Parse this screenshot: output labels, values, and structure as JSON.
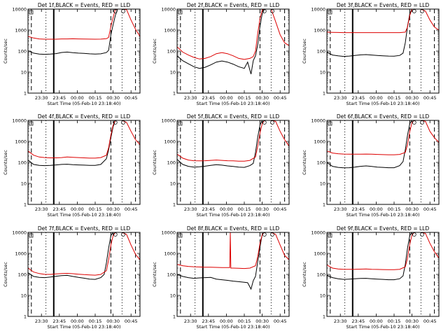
{
  "figure": {
    "ylabel": "Counts/sec",
    "xlabel": "Start Time (05-Feb-10 23:18:40)",
    "x_ticks": [
      "23:30",
      "23:45",
      "00:00",
      "00:15",
      "00:30",
      "00:45"
    ],
    "y_ticks": [
      "1",
      "10",
      "100",
      "1000",
      "10000"
    ],
    "colors": {
      "events": "#000000",
      "lld": "#dd0000",
      "axes": "#000000"
    }
  },
  "chart_data": [
    {
      "type": "line",
      "title": "Det 1f,BLACK = Events, RED = LLD",
      "ylim": [
        1,
        10000
      ],
      "log_y": true,
      "grid": false,
      "series": [
        {
          "name": "Events",
          "color": "#000000",
          "x": [
            0,
            5,
            10,
            15,
            20,
            25,
            30,
            35,
            40,
            45,
            50,
            55,
            60,
            65,
            70,
            72,
            74,
            76,
            78,
            80,
            84,
            88,
            92,
            96,
            100
          ],
          "y": [
            105,
            80,
            72,
            70,
            72,
            76,
            86,
            90,
            84,
            80,
            78,
            74,
            72,
            74,
            85,
            110,
            600,
            1800,
            5000,
            10000,
            10000,
            10000,
            10000,
            10000,
            10000
          ]
        },
        {
          "name": "LLD",
          "color": "#dd0000",
          "x": [
            0,
            5,
            10,
            15,
            20,
            25,
            30,
            35,
            40,
            45,
            50,
            55,
            60,
            65,
            70,
            72,
            74,
            76,
            78,
            80,
            84,
            88,
            92,
            96,
            100
          ],
          "y": [
            500,
            420,
            380,
            370,
            370,
            370,
            380,
            380,
            385,
            380,
            375,
            372,
            370,
            372,
            390,
            450,
            1500,
            4000,
            9500,
            10000,
            10000,
            9500,
            3000,
            1100,
            500
          ]
        }
      ]
    },
    {
      "type": "line",
      "title": "Det 2f,BLACK = Events, RED = LLD",
      "ylim": [
        1,
        10000
      ],
      "log_y": true,
      "grid": false,
      "series": [
        {
          "name": "Events",
          "color": "#000000",
          "x": [
            0,
            5,
            10,
            15,
            20,
            25,
            30,
            35,
            40,
            45,
            50,
            55,
            60,
            63,
            66,
            68,
            70,
            72,
            74,
            76,
            78,
            80,
            84,
            88,
            92,
            96,
            100
          ],
          "y": [
            60,
            35,
            25,
            18,
            15,
            17,
            22,
            30,
            34,
            30,
            24,
            18,
            15,
            30,
            8,
            35,
            60,
            200,
            1500,
            6000,
            10000,
            10000,
            10000,
            10000,
            10000,
            10000,
            10000
          ]
        },
        {
          "name": "LLD",
          "color": "#dd0000",
          "x": [
            0,
            5,
            10,
            15,
            20,
            25,
            30,
            35,
            40,
            45,
            50,
            55,
            60,
            65,
            68,
            70,
            72,
            74,
            76,
            78,
            80,
            84,
            88,
            92,
            96,
            100
          ],
          "y": [
            160,
            90,
            65,
            50,
            42,
            45,
            55,
            75,
            85,
            75,
            60,
            45,
            40,
            45,
            55,
            100,
            700,
            3500,
            9000,
            10000,
            10000,
            10000,
            2500,
            600,
            250,
            180
          ]
        }
      ]
    },
    {
      "type": "line",
      "title": "Det 3f,BLACK = Events, RED = LLD",
      "ylim": [
        1,
        10000
      ],
      "log_y": true,
      "grid": false,
      "series": [
        {
          "name": "Events",
          "color": "#000000",
          "x": [
            0,
            5,
            10,
            15,
            20,
            25,
            30,
            35,
            40,
            45,
            50,
            55,
            60,
            65,
            68,
            70,
            72,
            74,
            76,
            80,
            84,
            88,
            92,
            96,
            100
          ],
          "y": [
            90,
            65,
            60,
            56,
            58,
            62,
            66,
            68,
            65,
            62,
            60,
            58,
            57,
            62,
            80,
            250,
            1500,
            6000,
            10000,
            10000,
            10000,
            10000,
            10000,
            10000,
            10000
          ]
        },
        {
          "name": "LLD",
          "color": "#dd0000",
          "x": [
            0,
            5,
            10,
            15,
            20,
            25,
            30,
            35,
            40,
            45,
            50,
            55,
            60,
            65,
            70,
            72,
            74,
            76,
            78,
            80,
            84,
            88,
            92,
            96,
            100
          ],
          "y": [
            800,
            780,
            770,
            760,
            760,
            760,
            760,
            760,
            760,
            760,
            760,
            760,
            760,
            760,
            800,
            1400,
            5000,
            10000,
            10000,
            10000,
            10000,
            8000,
            3000,
            1400,
            1000
          ]
        }
      ]
    },
    {
      "type": "line",
      "title": "Det 4f,BLACK = Events, RED = LLD",
      "ylim": [
        1,
        10000
      ],
      "log_y": true,
      "grid": false,
      "series": [
        {
          "name": "Events",
          "color": "#000000",
          "x": [
            0,
            5,
            10,
            15,
            20,
            25,
            30,
            35,
            40,
            45,
            50,
            55,
            60,
            65,
            70,
            72,
            74,
            76,
            78,
            80,
            84,
            88,
            92,
            96,
            100
          ],
          "y": [
            130,
            80,
            72,
            70,
            72,
            76,
            80,
            82,
            78,
            76,
            74,
            72,
            72,
            80,
            150,
            400,
            1500,
            5000,
            10000,
            10000,
            10000,
            10000,
            10000,
            10000,
            10000
          ]
        },
        {
          "name": "LLD",
          "color": "#dd0000",
          "x": [
            0,
            5,
            10,
            15,
            20,
            25,
            30,
            35,
            40,
            45,
            50,
            55,
            60,
            65,
            70,
            72,
            74,
            76,
            78,
            80,
            84,
            88,
            92,
            96,
            100
          ],
          "y": [
            350,
            220,
            180,
            170,
            165,
            165,
            170,
            180,
            175,
            170,
            165,
            160,
            160,
            170,
            220,
            500,
            2000,
            6000,
            10000,
            10000,
            10000,
            8000,
            3000,
            1200,
            700
          ]
        }
      ]
    },
    {
      "type": "line",
      "title": "Det 5f,BLACK = Events, RED = LLD",
      "ylim": [
        1,
        10000
      ],
      "log_y": true,
      "grid": false,
      "series": [
        {
          "name": "Events",
          "color": "#000000",
          "x": [
            0,
            5,
            10,
            15,
            20,
            25,
            30,
            35,
            40,
            45,
            50,
            55,
            60,
            65,
            68,
            70,
            72,
            74,
            76,
            80,
            84,
            88,
            92,
            96,
            100
          ],
          "y": [
            140,
            80,
            65,
            60,
            62,
            66,
            72,
            78,
            74,
            68,
            64,
            60,
            58,
            70,
            90,
            300,
            1600,
            6000,
            10000,
            10000,
            10000,
            10000,
            10000,
            10000,
            10000
          ]
        },
        {
          "name": "LLD",
          "color": "#dd0000",
          "x": [
            0,
            5,
            10,
            15,
            20,
            25,
            30,
            35,
            40,
            45,
            50,
            55,
            60,
            65,
            70,
            72,
            74,
            76,
            78,
            80,
            84,
            88,
            92,
            96,
            100
          ],
          "y": [
            250,
            160,
            130,
            120,
            118,
            120,
            125,
            130,
            125,
            120,
            118,
            115,
            115,
            125,
            180,
            600,
            2500,
            7000,
            10000,
            10000,
            10000,
            9000,
            3000,
            1200,
            600
          ]
        }
      ]
    },
    {
      "type": "line",
      "title": "Det 6f,BLACK = Events, RED = LLD",
      "ylim": [
        1,
        10000
      ],
      "log_y": true,
      "grid": false,
      "series": [
        {
          "name": "Events",
          "color": "#000000",
          "x": [
            0,
            5,
            10,
            15,
            20,
            25,
            30,
            35,
            40,
            45,
            50,
            55,
            60,
            65,
            68,
            70,
            72,
            74,
            76,
            80,
            84,
            88,
            92,
            96,
            100
          ],
          "y": [
            100,
            65,
            58,
            55,
            56,
            60,
            65,
            68,
            64,
            60,
            58,
            56,
            56,
            70,
            110,
            400,
            2000,
            7000,
            10000,
            10000,
            10000,
            10000,
            10000,
            10000,
            10000
          ]
        },
        {
          "name": "LLD",
          "color": "#dd0000",
          "x": [
            0,
            5,
            10,
            15,
            20,
            25,
            30,
            35,
            40,
            45,
            50,
            55,
            60,
            65,
            70,
            72,
            74,
            76,
            78,
            80,
            84,
            88,
            92,
            96,
            100
          ],
          "y": [
            350,
            280,
            260,
            250,
            245,
            245,
            245,
            250,
            245,
            240,
            235,
            230,
            230,
            240,
            300,
            700,
            3000,
            8000,
            10000,
            10000,
            10000,
            9000,
            3000,
            1500,
            900
          ]
        }
      ]
    },
    {
      "type": "line",
      "title": "Det 7f,BLACK = Events, RED = LLD",
      "ylim": [
        1,
        10000
      ],
      "log_y": true,
      "grid": false,
      "series": [
        {
          "name": "Events",
          "color": "#000000",
          "x": [
            0,
            5,
            10,
            15,
            20,
            25,
            30,
            35,
            40,
            45,
            50,
            55,
            60,
            65,
            68,
            70,
            72,
            74,
            76,
            80,
            84,
            88,
            92,
            96,
            100
          ],
          "y": [
            120,
            80,
            72,
            70,
            75,
            82,
            88,
            90,
            80,
            72,
            66,
            60,
            58,
            70,
            100,
            350,
            1800,
            7000,
            10000,
            10000,
            10000,
            10000,
            10000,
            10000,
            10000
          ]
        },
        {
          "name": "LLD",
          "color": "#dd0000",
          "x": [
            0,
            5,
            10,
            15,
            20,
            25,
            30,
            35,
            40,
            45,
            50,
            55,
            60,
            65,
            70,
            72,
            74,
            76,
            78,
            80,
            84,
            88,
            92,
            96,
            100
          ],
          "y": [
            200,
            130,
            110,
            100,
            100,
            105,
            110,
            112,
            108,
            102,
            98,
            95,
            92,
            100,
            150,
            500,
            2500,
            7000,
            10000,
            10000,
            10000,
            8000,
            2500,
            900,
            500
          ]
        }
      ]
    },
    {
      "type": "line",
      "title": "Det 8f,BLACK = Events, RED = LLD",
      "ylim": [
        1,
        10000
      ],
      "log_y": true,
      "grid": false,
      "series": [
        {
          "name": "Events",
          "color": "#000000",
          "x": [
            0,
            5,
            10,
            15,
            20,
            25,
            30,
            35,
            40,
            45,
            50,
            55,
            60,
            63,
            66,
            68,
            70,
            72,
            74,
            76,
            78,
            80,
            84,
            88,
            92,
            96,
            100
          ],
          "y": [
            100,
            80,
            70,
            65,
            68,
            70,
            72,
            60,
            56,
            52,
            48,
            45,
            42,
            40,
            20,
            50,
            80,
            400,
            2000,
            8000,
            10000,
            10000,
            10000,
            10000,
            10000,
            10000,
            10000
          ]
        },
        {
          "name": "LLD",
          "color": "#dd0000",
          "x": [
            0,
            5,
            10,
            15,
            20,
            25,
            30,
            35,
            40,
            45,
            47,
            47.5,
            48,
            50,
            55,
            60,
            65,
            70,
            72,
            74,
            76,
            78,
            80,
            84,
            88,
            92,
            96,
            100
          ],
          "y": [
            300,
            260,
            240,
            230,
            225,
            220,
            220,
            215,
            210,
            210,
            210,
            10000,
            200,
            200,
            195,
            190,
            200,
            260,
            700,
            3000,
            8000,
            10000,
            10000,
            10000,
            8000,
            2500,
            800,
            500
          ]
        }
      ]
    },
    {
      "type": "line",
      "title": "Det 9f,BLACK = Events, RED = LLD",
      "ylim": [
        1,
        10000
      ],
      "log_y": true,
      "grid": false,
      "series": [
        {
          "name": "Events",
          "color": "#000000",
          "x": [
            0,
            5,
            10,
            15,
            20,
            25,
            30,
            35,
            40,
            45,
            50,
            55,
            60,
            65,
            68,
            70,
            72,
            74,
            76,
            80,
            84,
            88,
            92,
            96,
            100
          ],
          "y": [
            90,
            70,
            62,
            58,
            60,
            62,
            64,
            65,
            62,
            60,
            58,
            56,
            56,
            62,
            85,
            300,
            1800,
            7000,
            10000,
            10000,
            10000,
            10000,
            10000,
            10000,
            10000
          ]
        },
        {
          "name": "LLD",
          "color": "#dd0000",
          "x": [
            0,
            5,
            10,
            15,
            20,
            25,
            30,
            35,
            40,
            45,
            50,
            55,
            60,
            65,
            70,
            72,
            74,
            76,
            78,
            80,
            84,
            88,
            92,
            96,
            100
          ],
          "y": [
            280,
            200,
            180,
            175,
            175,
            175,
            178,
            180,
            175,
            172,
            170,
            168,
            168,
            175,
            230,
            600,
            2800,
            7500,
            10000,
            10000,
            10000,
            9000,
            3000,
            1200,
            600
          ]
        }
      ]
    }
  ]
}
